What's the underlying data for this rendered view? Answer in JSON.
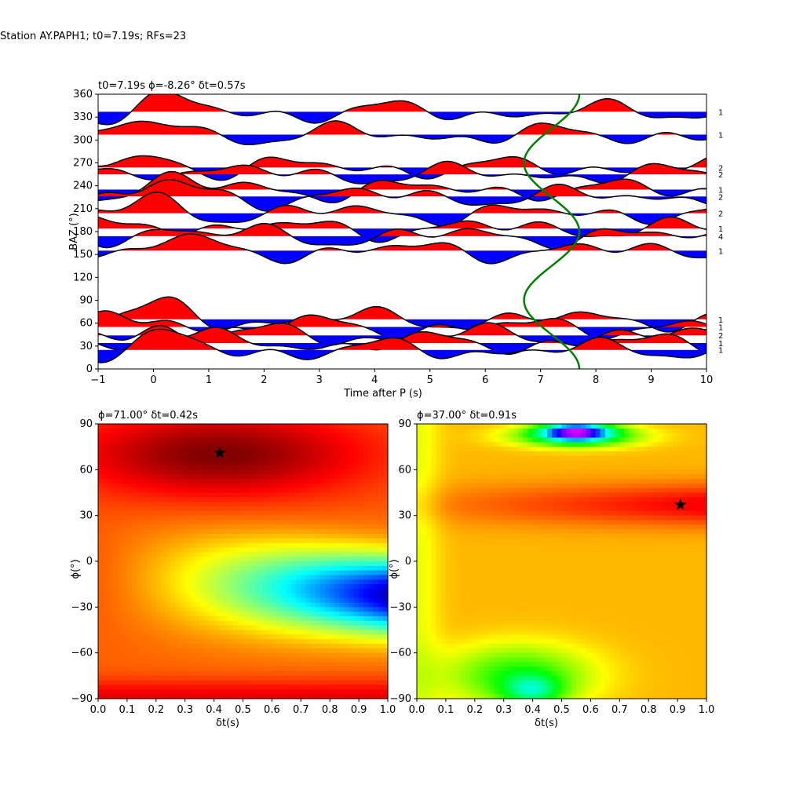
{
  "suptitle": "Station AY.PAPH1; t0=7.19s; RFs=23",
  "chart_data": [
    {
      "type": "area",
      "title": "t0=7.19s ϕ=-8.26° δt=0.57s",
      "xlabel": "Time after P (s)",
      "ylabel": "BAZ (°)",
      "xlim": [
        -1,
        10
      ],
      "ylim": [
        0,
        360
      ],
      "xticks": [
        "−1",
        "0",
        "1",
        "2",
        "3",
        "4",
        "5",
        "6",
        "7",
        "8",
        "9",
        "10"
      ],
      "yticks": [
        "0",
        "30",
        "60",
        "90",
        "120",
        "150",
        "180",
        "210",
        "240",
        "270",
        "300",
        "330",
        "360"
      ],
      "positive_fill": "#ff0000",
      "negative_fill": "#0000ff",
      "curve_color": "#008000",
      "traces": [
        {
          "baz": 337,
          "count": "1"
        },
        {
          "baz": 307,
          "count": "1"
        },
        {
          "baz": 264,
          "count": "2"
        },
        {
          "baz": 255,
          "count": "2"
        },
        {
          "baz": 235,
          "count": "1"
        },
        {
          "baz": 226,
          "count": "2"
        },
        {
          "baz": 204,
          "count": "2"
        },
        {
          "baz": 184,
          "count": "1"
        },
        {
          "baz": 174,
          "count": "4"
        },
        {
          "baz": 155,
          "count": "1"
        },
        {
          "baz": 65,
          "count": "1"
        },
        {
          "baz": 55,
          "count": "1"
        },
        {
          "baz": 44,
          "count": "2"
        },
        {
          "baz": 34,
          "count": "1"
        },
        {
          "baz": 25,
          "count": "1"
        }
      ]
    },
    {
      "type": "heatmap",
      "title": "ϕ=71.00° δt=0.42s",
      "xlabel": "δt(s)",
      "ylabel": "ϕ(°)",
      "xlim": [
        0,
        1
      ],
      "ylim": [
        -90,
        90
      ],
      "xticks": [
        "0.0",
        "0.1",
        "0.2",
        "0.3",
        "0.4",
        "0.5",
        "0.6",
        "0.7",
        "0.8",
        "0.9",
        "1.0"
      ],
      "yticks": [
        "−90",
        "−60",
        "−30",
        "0",
        "30",
        "60",
        "90"
      ],
      "best": {
        "dt": 0.42,
        "phi": 71
      },
      "colormap": "jet"
    },
    {
      "type": "heatmap",
      "title": "ϕ=37.00° δt=0.91s",
      "xlabel": "δt(s)",
      "ylabel": "ϕ(°)",
      "xlim": [
        0,
        1
      ],
      "ylim": [
        -90,
        90
      ],
      "xticks": [
        "0.0",
        "0.1",
        "0.2",
        "0.3",
        "0.4",
        "0.5",
        "0.6",
        "0.7",
        "0.8",
        "0.9",
        "1.0"
      ],
      "yticks": [
        "−90",
        "−60",
        "−30",
        "0",
        "30",
        "60",
        "90"
      ],
      "best": {
        "dt": 0.91,
        "phi": 37
      },
      "colormap": "hsv"
    }
  ]
}
